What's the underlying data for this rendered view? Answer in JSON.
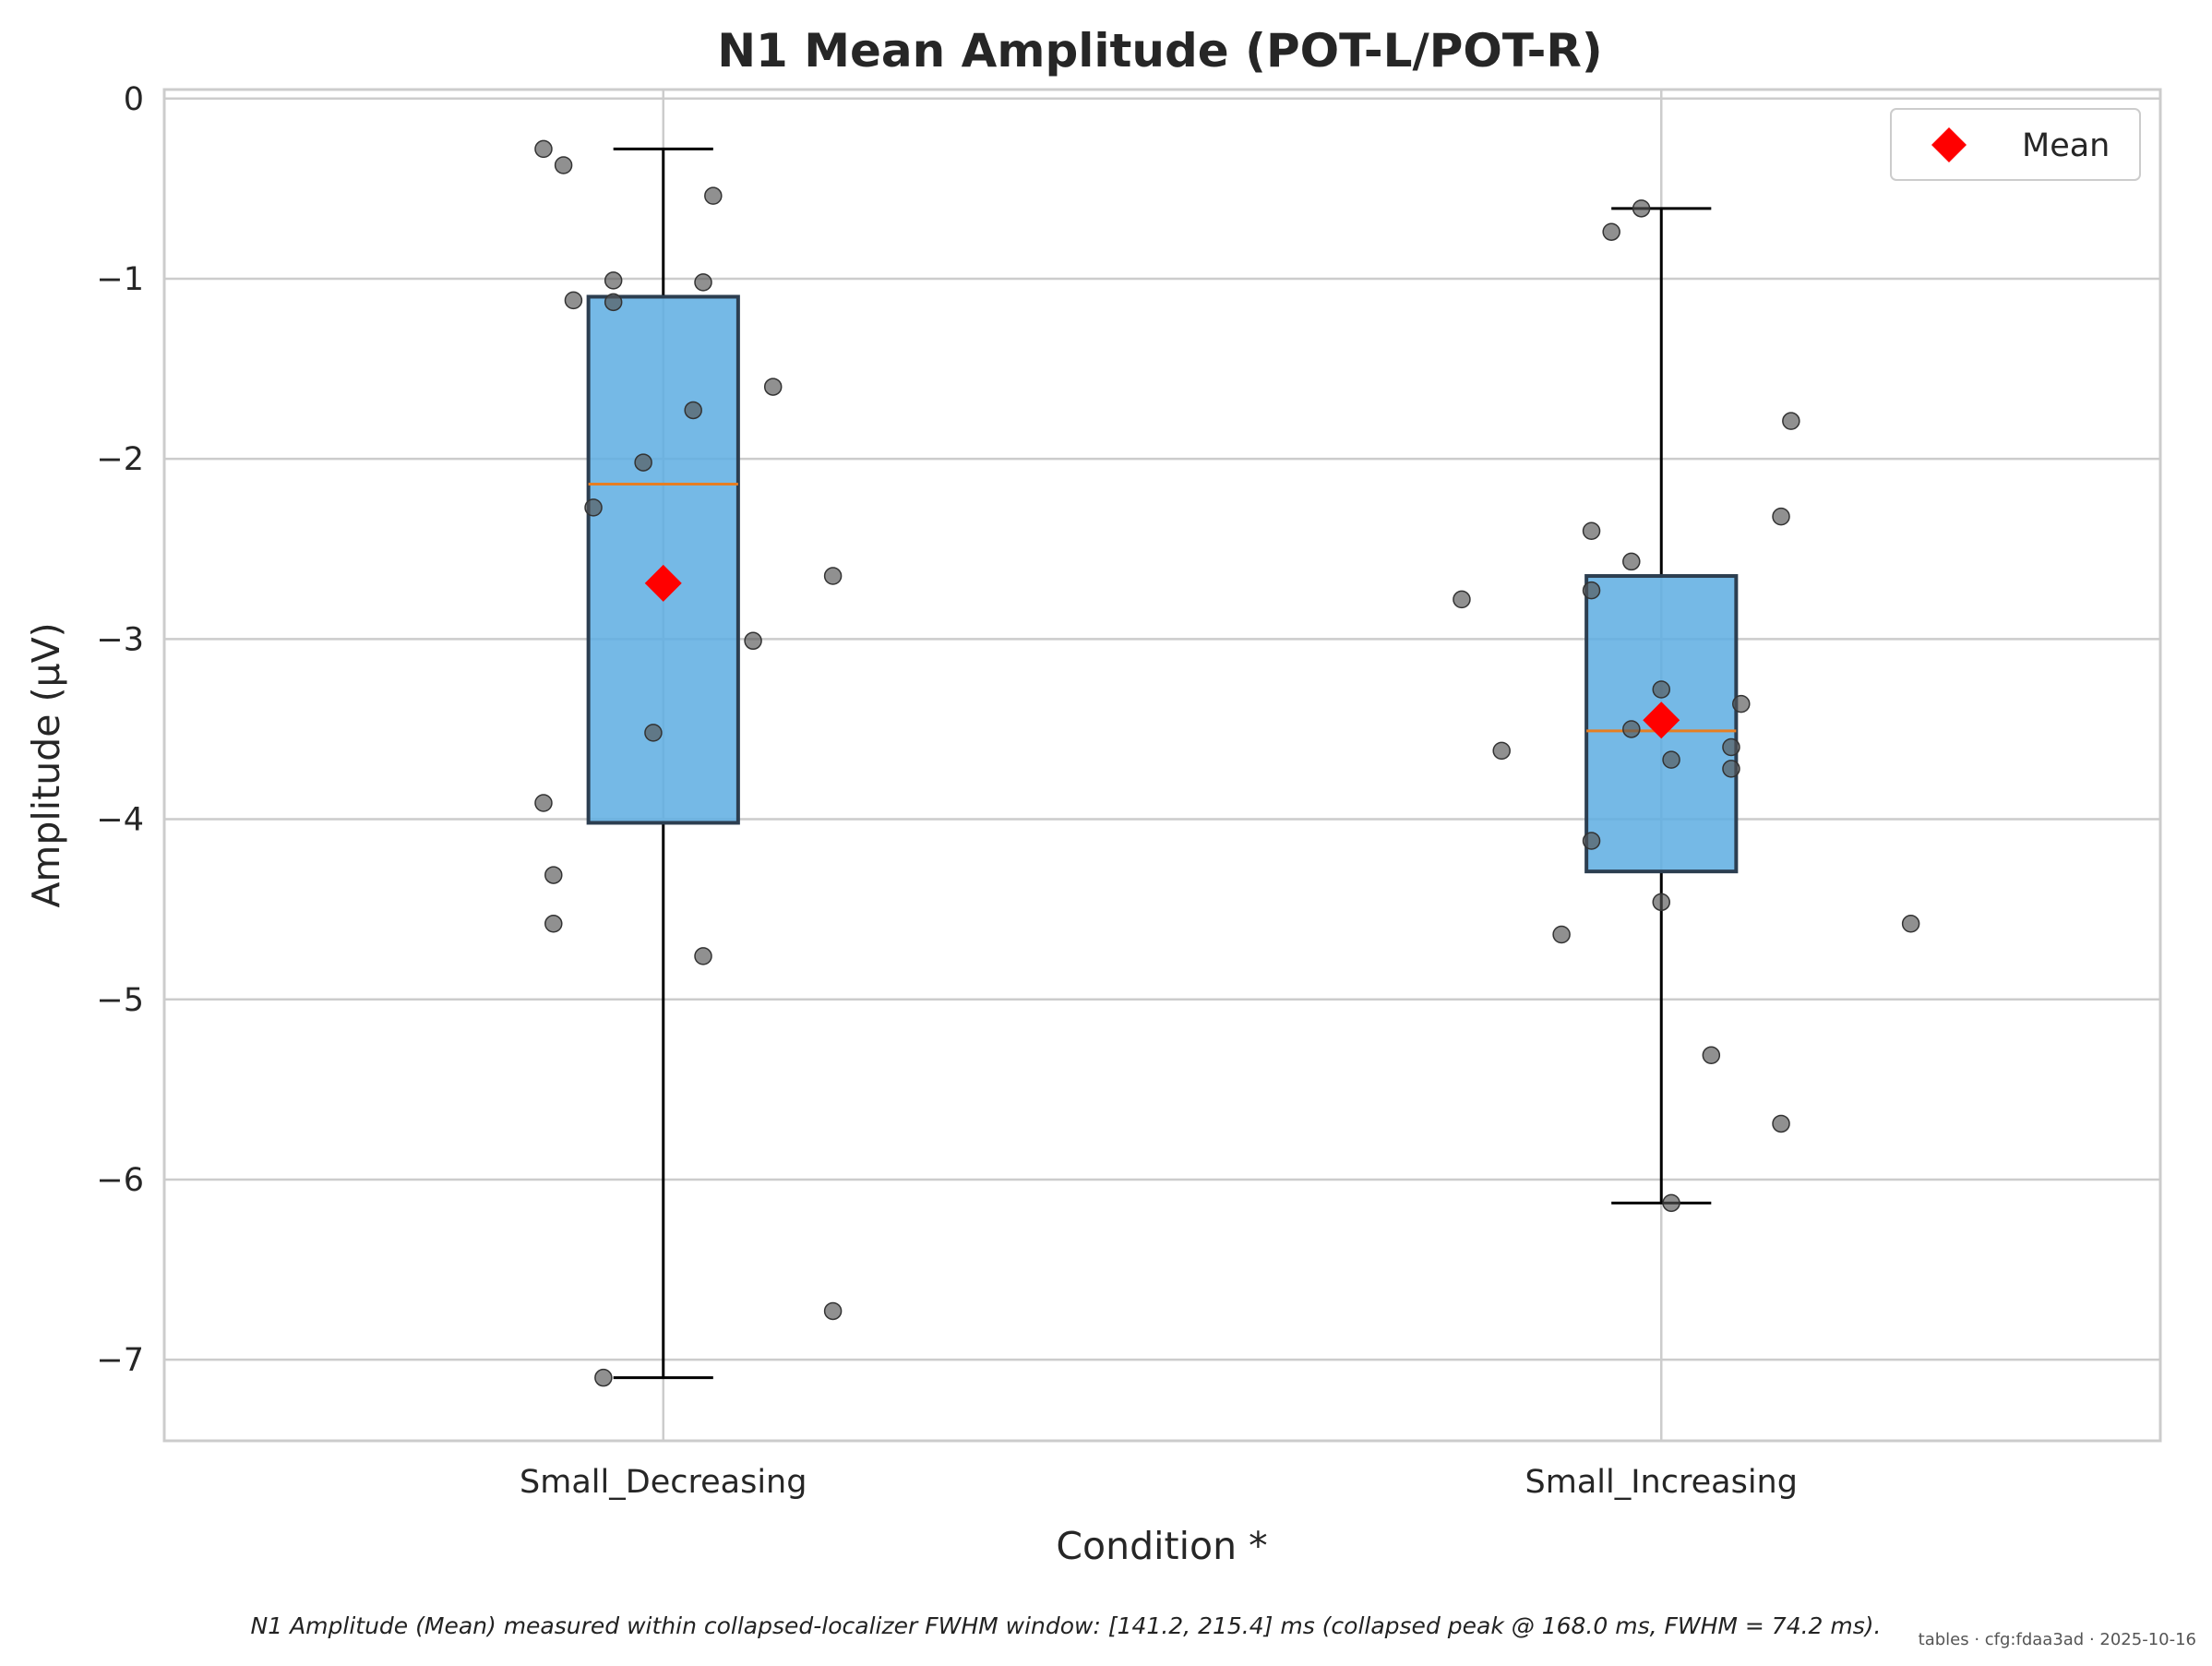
{
  "chart_data": {
    "type": "box",
    "title": "N1 Mean Amplitude (POT-L/POT-R)",
    "xlabel": "Condition *",
    "ylabel": "Amplitude (μV)",
    "ylim": [
      -7.45,
      0.05
    ],
    "yticks": [
      0,
      -1,
      -2,
      -3,
      -4,
      -5,
      -6,
      -7
    ],
    "ytick_labels": [
      "0",
      "−1",
      "−2",
      "−3",
      "−4",
      "−5",
      "−6",
      "−7"
    ],
    "categories": [
      "Small_Decreasing",
      "Small_Increasing"
    ],
    "grid": true,
    "legend": {
      "placement": "top-right",
      "entries": [
        {
          "label": "Mean",
          "marker": "diamond",
          "color": "#ff0000"
        }
      ]
    },
    "colors": {
      "box_fill": "#5dade2",
      "box_edge": "#2c3e50",
      "median": "#e67e22",
      "mean": "#ff0000",
      "points": "#555555",
      "grid": "#cccccc"
    },
    "boxes": [
      {
        "category": "Small_Decreasing",
        "whisker_low": -7.1,
        "q1": -4.02,
        "median": -2.14,
        "q3": -1.1,
        "whisker_high": -0.28,
        "mean": -2.69
      },
      {
        "category": "Small_Increasing",
        "whisker_low": -6.13,
        "q1": -4.29,
        "median": -3.51,
        "q3": -2.65,
        "whisker_high": -0.61,
        "mean": -3.45
      }
    ],
    "points": [
      [
        [
          -0.12,
          -0.28
        ],
        [
          -0.1,
          -0.37
        ],
        [
          0.05,
          -0.54
        ],
        [
          -0.05,
          -1.01
        ],
        [
          0.04,
          -1.02
        ],
        [
          -0.09,
          -1.12
        ],
        [
          -0.05,
          -1.13
        ],
        [
          0.11,
          -1.6
        ],
        [
          0.03,
          -1.73
        ],
        [
          -0.02,
          -2.02
        ],
        [
          -0.07,
          -2.27
        ],
        [
          0.17,
          -2.65
        ],
        [
          0.09,
          -3.01
        ],
        [
          -0.01,
          -3.52
        ],
        [
          -0.12,
          -3.91
        ],
        [
          -0.11,
          -4.31
        ],
        [
          -0.11,
          -4.58
        ],
        [
          0.04,
          -4.76
        ],
        [
          0.17,
          -6.73
        ],
        [
          -0.06,
          -7.1
        ]
      ],
      [
        [
          -0.02,
          -0.61
        ],
        [
          -0.05,
          -0.74
        ],
        [
          0.13,
          -1.79
        ],
        [
          0.12,
          -2.32
        ],
        [
          -0.07,
          -2.4
        ],
        [
          -0.03,
          -2.57
        ],
        [
          -0.07,
          -2.73
        ],
        [
          -0.2,
          -2.78
        ],
        [
          0.0,
          -3.28
        ],
        [
          0.08,
          -3.36
        ],
        [
          -0.03,
          -3.5
        ],
        [
          0.07,
          -3.6
        ],
        [
          -0.16,
          -3.62
        ],
        [
          0.01,
          -3.67
        ],
        [
          0.07,
          -3.72
        ],
        [
          -0.07,
          -4.12
        ],
        [
          0.0,
          -4.46
        ],
        [
          -0.1,
          -4.64
        ],
        [
          0.25,
          -4.58
        ],
        [
          0.05,
          -5.31
        ],
        [
          0.12,
          -5.69
        ],
        [
          0.01,
          -6.13
        ]
      ]
    ],
    "caption": "N1 Amplitude (Mean) measured within collapsed-localizer FWHM window: [141.2, 215.4] ms (collapsed peak @ 168.0 ms, FWHM = 74.2 ms).",
    "watermark": "tables · cfg:fdaa3ad · 2025-10-16"
  }
}
